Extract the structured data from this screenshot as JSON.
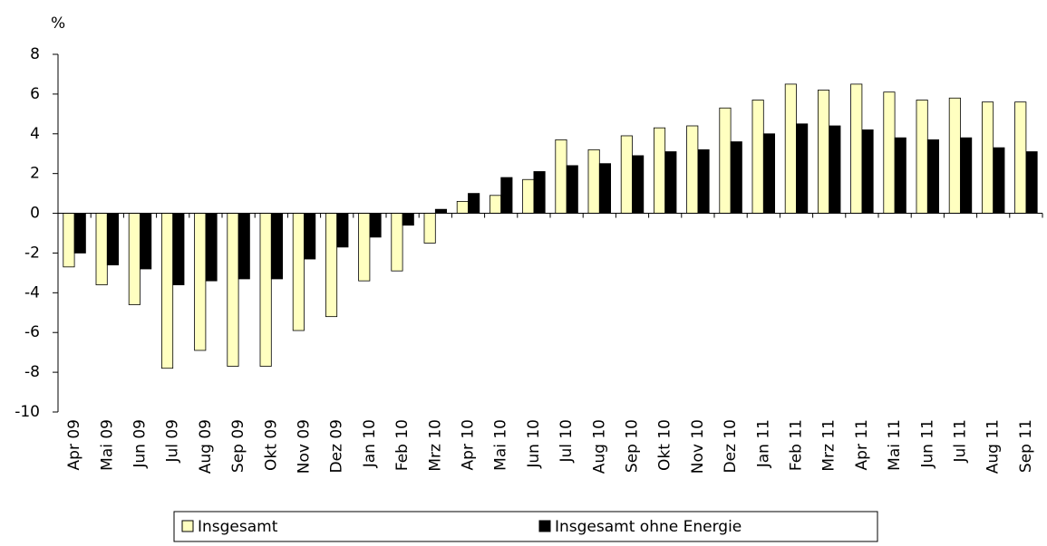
{
  "chart_data": {
    "type": "bar",
    "y_label": "%",
    "categories": [
      "Apr 09",
      "Mai 09",
      "Jun 09",
      "Jul 09",
      "Aug 09",
      "Sep 09",
      "Okt 09",
      "Nov 09",
      "Dez 09",
      "Jan 10",
      "Feb 10",
      "Mrz 10",
      "Apr 10",
      "Mai 10",
      "Jun 10",
      "Jul 10",
      "Aug 10",
      "Sep 10",
      "Okt 10",
      "Nov 10",
      "Dez 10",
      "Jan 11",
      "Feb 11",
      "Mrz 11",
      "Apr 11",
      "Mai 11",
      "Jun 11",
      "Jul 11",
      "Aug 11",
      "Sep 11"
    ],
    "series": [
      {
        "name": "Insgesamt",
        "color": "#ffffc0",
        "values": [
          -2.7,
          -3.6,
          -4.6,
          -7.8,
          -6.9,
          -7.7,
          -7.7,
          -5.9,
          -5.2,
          -3.4,
          -2.9,
          -1.5,
          0.6,
          0.9,
          1.7,
          3.7,
          3.2,
          3.9,
          4.3,
          4.4,
          5.3,
          5.7,
          6.5,
          6.2,
          6.5,
          6.1,
          5.7,
          5.8,
          5.6,
          5.6
        ]
      },
      {
        "name": "Insgesamt ohne Energie",
        "color": "#000000",
        "values": [
          -2.0,
          -2.6,
          -2.8,
          -3.6,
          -3.4,
          -3.3,
          -3.3,
          -2.3,
          -1.7,
          -1.2,
          -0.6,
          0.2,
          1.0,
          1.8,
          2.1,
          2.4,
          2.5,
          2.9,
          3.1,
          3.2,
          3.6,
          4.0,
          4.5,
          4.4,
          4.2,
          3.8,
          3.7,
          3.8,
          3.3,
          3.1
        ]
      }
    ],
    "ylim": [
      -10,
      8
    ],
    "yticks": [
      -10,
      -8,
      -6,
      -4,
      -2,
      0,
      2,
      4,
      6,
      8
    ],
    "grid": false,
    "legend": "bottom"
  }
}
